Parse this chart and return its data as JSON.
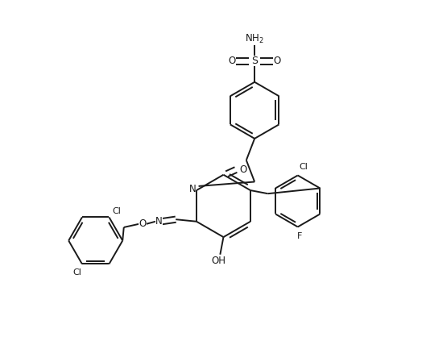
{
  "bg_color": "#ffffff",
  "line_color": "#1a1a1a",
  "line_width": 1.4,
  "font_size": 8.5,
  "figsize": [
    5.24,
    4.18
  ],
  "dpi": 100,
  "xlim": [
    0,
    10
  ],
  "ylim": [
    0,
    8
  ]
}
